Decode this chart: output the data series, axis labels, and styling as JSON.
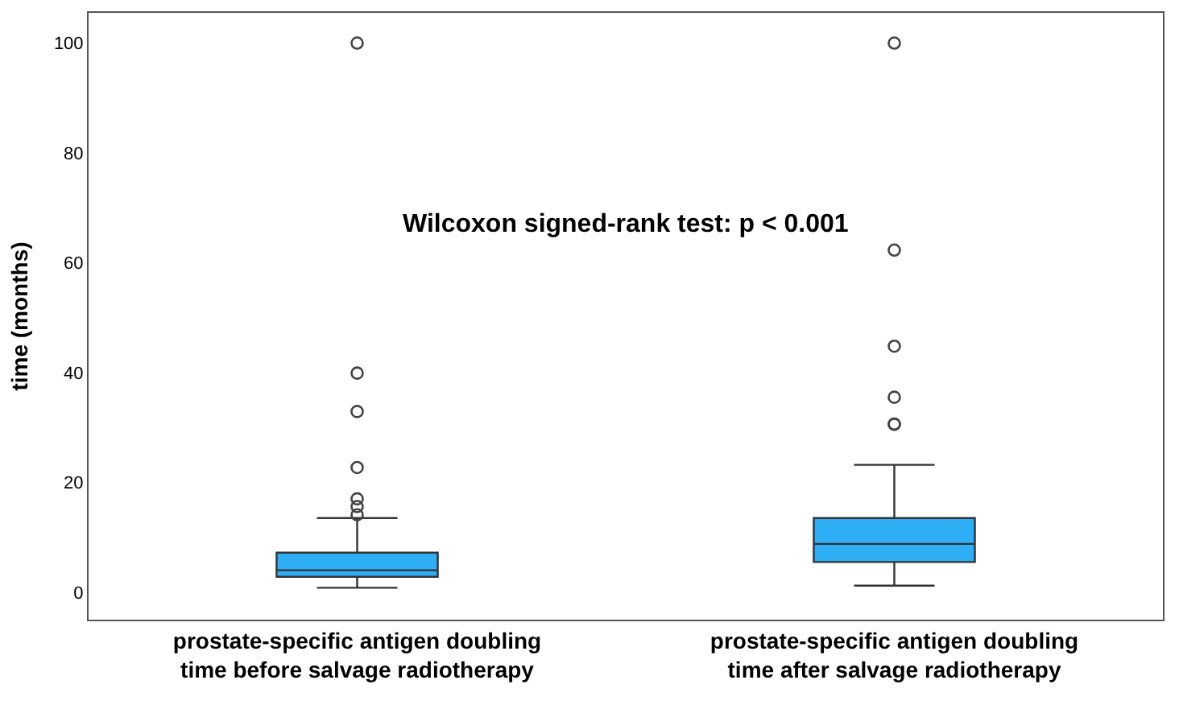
{
  "chart_data": {
    "type": "box",
    "ylabel": "time (months)",
    "categories": [
      "prostate-specific antigen doubling time before salvage radiotherapy",
      "prostate-specific antigen doubling time after salvage radiotherapy"
    ],
    "boxes": [
      {
        "low": 0.8,
        "q1": 2.8,
        "median": 4,
        "q3": 7.2,
        "high": 13.5,
        "outliers": [
          14.1,
          15.6,
          17,
          22.7,
          32.9,
          39.9,
          100
        ]
      },
      {
        "low": 1.2,
        "q1": 5.5,
        "median": 8.8,
        "q3": 13.5,
        "high": 23.2,
        "outliers": [
          30.6,
          30.6,
          35.5,
          44.8,
          62.3,
          100
        ]
      }
    ],
    "color": "#2eaef5",
    "ylim": [
      -5,
      105.5
    ],
    "yticks": [
      0,
      20,
      40,
      60,
      80,
      100
    ],
    "grid": false,
    "marker": "circle",
    "annotations": [
      "Wilcoxon signed-rank test: p < 0.001"
    ]
  }
}
